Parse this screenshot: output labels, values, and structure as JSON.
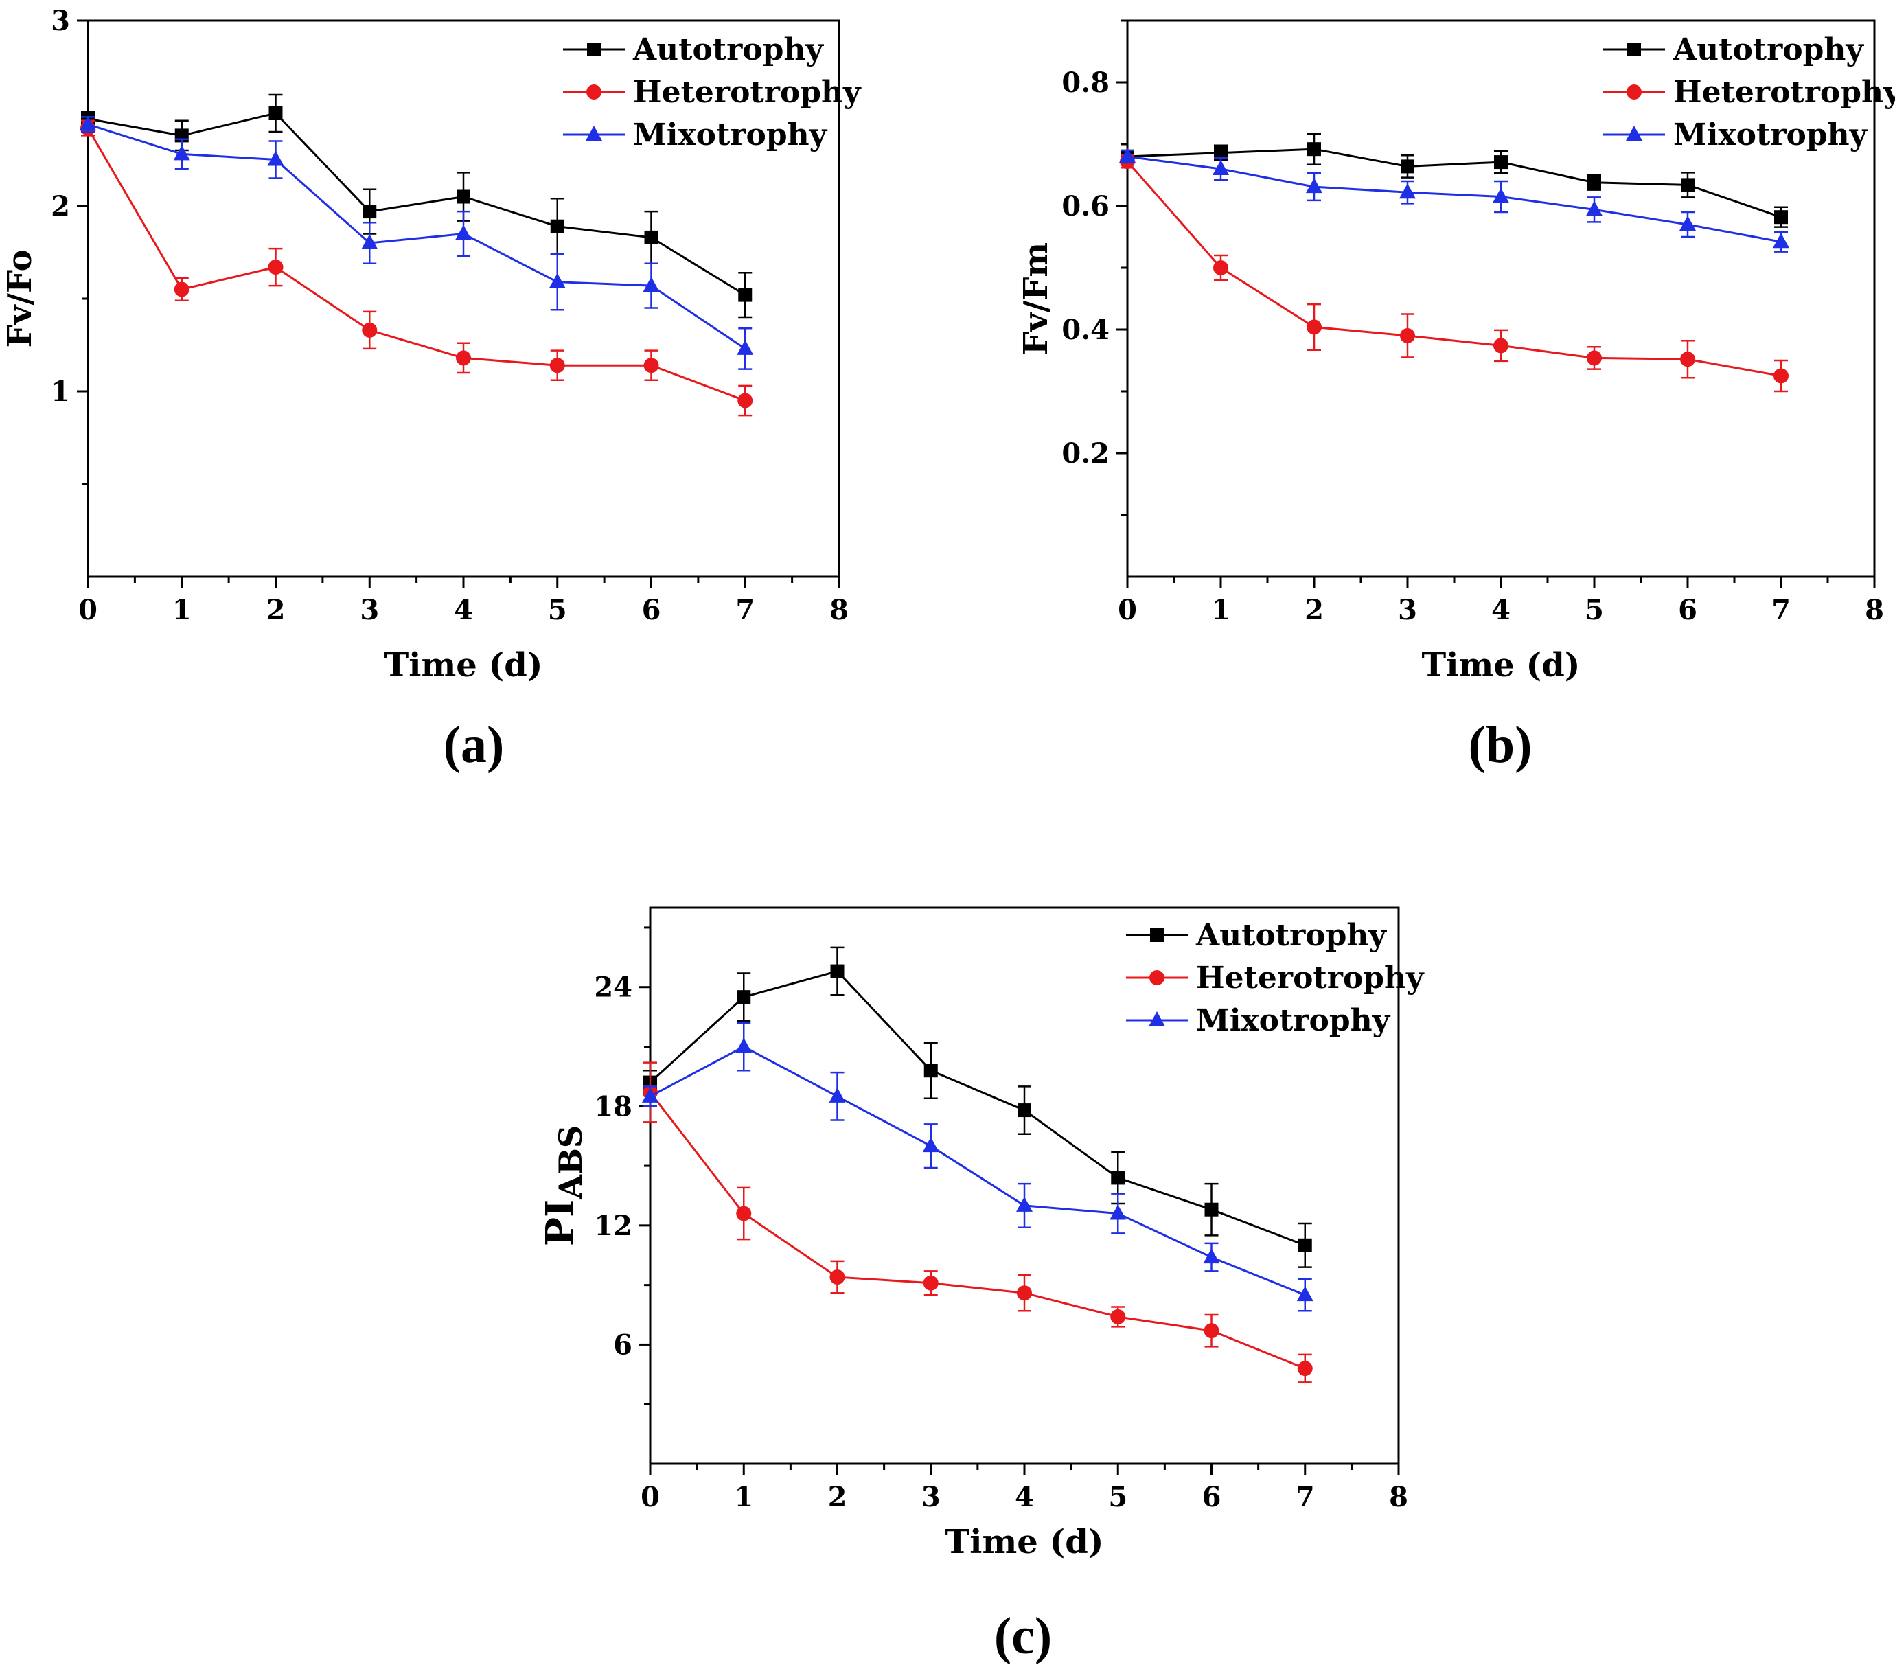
{
  "colors": {
    "autotrophy": "#000000",
    "heterotrophy": "#e8191c",
    "mixotrophy": "#1f2fe6"
  },
  "chart_data": [
    {
      "panel_label": "(a)",
      "type": "line",
      "xlabel": "Time (d)",
      "ylabel": "Fv/Fo",
      "xlim": [
        0,
        8
      ],
      "ylim": [
        0,
        3
      ],
      "x_ticks": [
        "0",
        "1",
        "2",
        "3",
        "4",
        "5",
        "6",
        "7",
        "8"
      ],
      "y_ticks": [
        {
          "value": 1,
          "label": "1"
        },
        {
          "value": 2,
          "label": "2"
        },
        {
          "value": 3,
          "label": "3"
        }
      ],
      "legend_position": "top-right",
      "series": [
        {
          "name": "Autotrophy",
          "marker": "square",
          "color_key": "autotrophy",
          "x": [
            0,
            1,
            2,
            3,
            4,
            5,
            6,
            7
          ],
          "y": [
            2.47,
            2.38,
            2.5,
            1.97,
            2.05,
            1.89,
            1.83,
            1.52
          ],
          "err": [
            0.04,
            0.08,
            0.1,
            0.12,
            0.13,
            0.15,
            0.14,
            0.12
          ]
        },
        {
          "name": "Heterotrophy",
          "marker": "circle",
          "color_key": "heterotrophy",
          "x": [
            0,
            1,
            2,
            3,
            4,
            5,
            6,
            7
          ],
          "y": [
            2.42,
            1.55,
            1.67,
            1.33,
            1.18,
            1.14,
            1.14,
            0.95
          ],
          "err": [
            0.04,
            0.06,
            0.1,
            0.1,
            0.08,
            0.08,
            0.08,
            0.08
          ]
        },
        {
          "name": "Mixotrophy",
          "marker": "triangle",
          "color_key": "mixotrophy",
          "x": [
            0,
            1,
            2,
            3,
            4,
            5,
            6,
            7
          ],
          "y": [
            2.44,
            2.28,
            2.25,
            1.8,
            1.85,
            1.59,
            1.57,
            1.23
          ],
          "err": [
            0.04,
            0.08,
            0.1,
            0.11,
            0.12,
            0.15,
            0.12,
            0.11
          ]
        }
      ]
    },
    {
      "panel_label": "(b)",
      "type": "line",
      "xlabel": "Time (d)",
      "ylabel": "Fv/Fm",
      "xlim": [
        0,
        8
      ],
      "ylim": [
        0,
        0.9
      ],
      "x_ticks": [
        "0",
        "1",
        "2",
        "3",
        "4",
        "5",
        "6",
        "7",
        "8"
      ],
      "y_ticks": [
        {
          "value": 0.2,
          "label": "0.2"
        },
        {
          "value": 0.4,
          "label": "0.4"
        },
        {
          "value": 0.6,
          "label": "0.6"
        },
        {
          "value": 0.8,
          "label": "0.8"
        }
      ],
      "legend_position": "top-right",
      "series": [
        {
          "name": "Autotrophy",
          "marker": "square",
          "color_key": "autotrophy",
          "x": [
            0,
            1,
            2,
            3,
            4,
            5,
            6,
            7
          ],
          "y": [
            0.68,
            0.686,
            0.692,
            0.664,
            0.671,
            0.638,
            0.634,
            0.582
          ],
          "err": [
            0.01,
            0.012,
            0.025,
            0.018,
            0.018,
            0.012,
            0.02,
            0.016
          ]
        },
        {
          "name": "Heterotrophy",
          "marker": "circle",
          "color_key": "heterotrophy",
          "x": [
            0,
            1,
            2,
            3,
            4,
            5,
            6,
            7
          ],
          "y": [
            0.672,
            0.5,
            0.404,
            0.39,
            0.374,
            0.354,
            0.352,
            0.325
          ],
          "err": [
            0.01,
            0.02,
            0.037,
            0.035,
            0.025,
            0.018,
            0.03,
            0.025
          ]
        },
        {
          "name": "Mixotrophy",
          "marker": "triangle",
          "color_key": "mixotrophy",
          "x": [
            0,
            1,
            2,
            3,
            4,
            5,
            6,
            7
          ],
          "y": [
            0.68,
            0.66,
            0.631,
            0.622,
            0.615,
            0.594,
            0.57,
            0.542
          ],
          "err": [
            0.01,
            0.018,
            0.022,
            0.018,
            0.025,
            0.02,
            0.02,
            0.016
          ]
        }
      ]
    },
    {
      "panel_label": "(c)",
      "type": "line",
      "xlabel": "Time (d)",
      "ylabel_main": "PI",
      "ylabel_sub": "ABS",
      "xlim": [
        0,
        8
      ],
      "ylim": [
        0,
        28
      ],
      "x_ticks": [
        "0",
        "1",
        "2",
        "3",
        "4",
        "5",
        "6",
        "7",
        "8"
      ],
      "y_ticks": [
        {
          "value": 6,
          "label": "6"
        },
        {
          "value": 12,
          "label": "12"
        },
        {
          "value": 18,
          "label": "18"
        },
        {
          "value": 24,
          "label": "24"
        }
      ],
      "legend_position": "top-right",
      "series": [
        {
          "name": "Autotrophy",
          "marker": "square",
          "color_key": "autotrophy",
          "x": [
            0,
            1,
            2,
            3,
            4,
            5,
            6,
            7
          ],
          "y": [
            19.2,
            23.5,
            24.8,
            19.8,
            17.8,
            14.4,
            12.8,
            11.0
          ],
          "err": [
            0.6,
            1.2,
            1.2,
            1.4,
            1.2,
            1.3,
            1.3,
            1.1
          ]
        },
        {
          "name": "Heterotrophy",
          "marker": "circle",
          "color_key": "heterotrophy",
          "x": [
            0,
            1,
            2,
            3,
            4,
            5,
            6,
            7
          ],
          "y": [
            18.7,
            12.6,
            9.4,
            9.1,
            8.6,
            7.4,
            6.7,
            4.8
          ],
          "err": [
            1.5,
            1.3,
            0.8,
            0.6,
            0.9,
            0.5,
            0.8,
            0.7
          ]
        },
        {
          "name": "Mixotrophy",
          "marker": "triangle",
          "color_key": "mixotrophy",
          "x": [
            0,
            1,
            2,
            3,
            4,
            5,
            6,
            7
          ],
          "y": [
            18.5,
            21.0,
            18.5,
            16.0,
            13.0,
            12.6,
            10.4,
            8.5
          ],
          "err": [
            0.5,
            1.2,
            1.2,
            1.1,
            1.1,
            1.0,
            0.7,
            0.8
          ]
        }
      ]
    }
  ]
}
